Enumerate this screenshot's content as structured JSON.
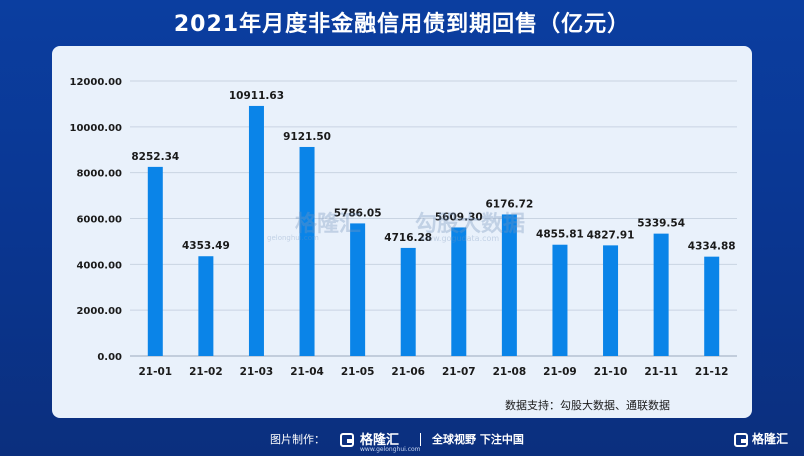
{
  "title": "2021年月度非金融信用债到期回售（亿元）",
  "source": "数据支持：勾股大数据、通联数据",
  "watermark": {
    "brand": "格隆汇",
    "brand_url": "gelonghui.com",
    "partner": "勾股大数据",
    "partner_url": "www.gogudata.com"
  },
  "footer": {
    "credit_label": "图片制作：",
    "brand": "格隆汇",
    "brand_url": "www.gelonghui.com",
    "slogan": "全球视野 下注中国",
    "corner_brand": "格隆汇"
  },
  "colors": {
    "bar": "#0a84e8",
    "background": "#0b3ea0",
    "panel": "#e9f1fb",
    "grid": "#c9d4e2"
  },
  "chart_data": {
    "type": "bar",
    "title": "2021年月度非金融信用债到期回售（亿元）",
    "xlabel": "",
    "ylabel": "",
    "categories": [
      "21-01",
      "21-02",
      "21-03",
      "21-04",
      "21-05",
      "21-06",
      "21-07",
      "21-08",
      "21-09",
      "21-10",
      "21-11",
      "21-12"
    ],
    "values": [
      8252.34,
      4353.49,
      10911.63,
      9121.5,
      5786.05,
      4716.28,
      5609.3,
      6176.72,
      4855.81,
      4827.91,
      5339.54,
      4334.88
    ],
    "value_labels": [
      "8252.34",
      "4353.49",
      "10911.63",
      "9121.50",
      "5786.05",
      "4716.28",
      "5609.30",
      "6176.72",
      "4855.81",
      "4827.91",
      "5339.54",
      "4334.88"
    ],
    "yticks": [
      "0.00",
      "2000.00",
      "4000.00",
      "6000.00",
      "8000.00",
      "10000.00",
      "12000.00"
    ],
    "ylim": [
      0,
      12000
    ],
    "grid": true,
    "legend": "none"
  }
}
